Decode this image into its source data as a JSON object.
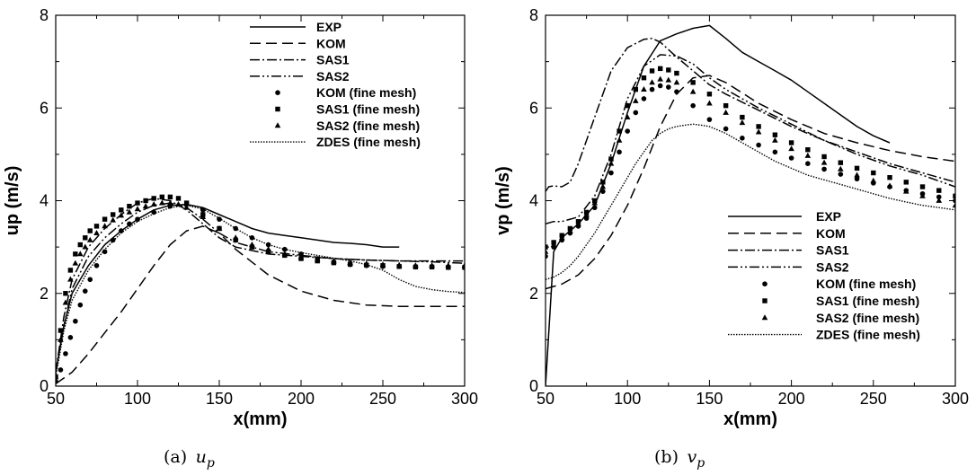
{
  "chart_data": [
    {
      "type": "line",
      "caption": "(a) u_p",
      "caption_prefix": "(a)",
      "caption_symbol": "u",
      "caption_sub": "p",
      "xlabel": "x(mm)",
      "ylabel": "up (m/s)",
      "xlim": [
        50,
        300
      ],
      "ylim": [
        0,
        8
      ],
      "xticks": [
        50,
        100,
        150,
        200,
        250,
        300
      ],
      "yticks": [
        0,
        2,
        4,
        6,
        8
      ],
      "legend_position": "top-right",
      "series": [
        {
          "name": "EXP",
          "style": "solid",
          "x": [
            50,
            55,
            60,
            70,
            80,
            90,
            100,
            110,
            120,
            130,
            140,
            150,
            160,
            170,
            180,
            190,
            200,
            210,
            220,
            230,
            240,
            250,
            260
          ],
          "y": [
            0.3,
            1.3,
            2.0,
            2.6,
            3.05,
            3.35,
            3.6,
            3.8,
            3.9,
            3.92,
            3.85,
            3.7,
            3.55,
            3.4,
            3.3,
            3.25,
            3.2,
            3.15,
            3.1,
            3.08,
            3.05,
            3.0,
            3.0
          ]
        },
        {
          "name": "KOM",
          "style": "dashed",
          "x": [
            50,
            60,
            70,
            80,
            90,
            100,
            110,
            120,
            130,
            140,
            150,
            160,
            180,
            200,
            220,
            240,
            260,
            280,
            300
          ],
          "y": [
            0.05,
            0.3,
            0.7,
            1.15,
            1.6,
            2.1,
            2.6,
            3.05,
            3.35,
            3.45,
            3.3,
            2.95,
            2.4,
            2.05,
            1.85,
            1.75,
            1.72,
            1.72,
            1.72
          ]
        },
        {
          "name": "SAS1",
          "style": "dashdot",
          "x": [
            50,
            55,
            60,
            70,
            80,
            90,
            100,
            110,
            120,
            130,
            140,
            150,
            160,
            180,
            200,
            220,
            240,
            260,
            280,
            300
          ],
          "y": [
            0.3,
            1.5,
            2.3,
            3.0,
            3.4,
            3.7,
            3.95,
            4.05,
            4.0,
            3.8,
            3.5,
            3.2,
            3.0,
            2.85,
            2.8,
            2.75,
            2.72,
            2.7,
            2.7,
            2.7
          ]
        },
        {
          "name": "SAS2",
          "style": "dashdotdot",
          "x": [
            50,
            55,
            60,
            70,
            80,
            90,
            100,
            110,
            120,
            130,
            140,
            150,
            160,
            180,
            200,
            220,
            240,
            260,
            280,
            300
          ],
          "y": [
            0.3,
            1.3,
            2.1,
            2.8,
            3.2,
            3.5,
            3.75,
            3.9,
            3.95,
            3.85,
            3.6,
            3.3,
            3.1,
            2.9,
            2.82,
            2.75,
            2.72,
            2.7,
            2.68,
            2.65
          ]
        },
        {
          "name": "KOM (fine mesh)",
          "style": "circle",
          "x": [
            50,
            53,
            56,
            59,
            62,
            65,
            68,
            71,
            75,
            80,
            85,
            90,
            95,
            100,
            110,
            120,
            130,
            140,
            150,
            160,
            170,
            180,
            190,
            200,
            210,
            220,
            230,
            240,
            250,
            260,
            270,
            280,
            290,
            300
          ],
          "y": [
            0.1,
            0.35,
            0.7,
            1.05,
            1.4,
            1.75,
            2.05,
            2.3,
            2.6,
            2.9,
            3.15,
            3.35,
            3.5,
            3.6,
            3.75,
            3.88,
            3.92,
            3.8,
            3.6,
            3.4,
            3.2,
            3.05,
            2.95,
            2.85,
            2.75,
            2.68,
            2.62,
            2.6,
            2.58,
            2.58,
            2.57,
            2.57,
            2.57,
            2.56
          ]
        },
        {
          "name": "SAS1 (fine mesh)",
          "style": "square",
          "x": [
            50,
            53,
            56,
            59,
            62,
            65,
            68,
            71,
            75,
            80,
            85,
            90,
            95,
            100,
            105,
            110,
            115,
            120,
            125,
            130,
            140,
            150,
            160,
            170,
            180,
            190,
            200,
            210,
            220,
            230,
            240,
            250,
            260,
            270,
            280,
            290,
            300
          ],
          "y": [
            0.2,
            1.2,
            2.0,
            2.5,
            2.85,
            3.05,
            3.2,
            3.35,
            3.45,
            3.6,
            3.7,
            3.8,
            3.88,
            3.95,
            4.0,
            4.05,
            4.08,
            4.08,
            4.05,
            3.95,
            3.7,
            3.4,
            3.15,
            3.0,
            2.9,
            2.82,
            2.75,
            2.7,
            2.66,
            2.63,
            2.61,
            2.6,
            2.58,
            2.57,
            2.57,
            2.56,
            2.56
          ]
        },
        {
          "name": "SAS2 (fine mesh)",
          "style": "triangle",
          "x": [
            50,
            53,
            56,
            59,
            62,
            65,
            68,
            71,
            75,
            80,
            85,
            90,
            95,
            100,
            105,
            110,
            115,
            120,
            125,
            130,
            140,
            150,
            160,
            170,
            180,
            190,
            200,
            210,
            220,
            230,
            240,
            250,
            260,
            270,
            280,
            290,
            300
          ],
          "y": [
            0.2,
            1.0,
            1.8,
            2.3,
            2.65,
            2.85,
            3.0,
            3.15,
            3.3,
            3.45,
            3.58,
            3.68,
            3.75,
            3.82,
            3.88,
            3.92,
            3.95,
            3.95,
            3.92,
            3.85,
            3.65,
            3.4,
            3.2,
            3.05,
            2.95,
            2.85,
            2.78,
            2.73,
            2.69,
            2.66,
            2.64,
            2.62,
            2.61,
            2.6,
            2.6,
            2.6,
            2.6
          ]
        },
        {
          "name": "ZDES (fine mesh)",
          "style": "dotted",
          "x": [
            50,
            55,
            60,
            70,
            80,
            90,
            100,
            110,
            120,
            130,
            140,
            150,
            160,
            170,
            180,
            190,
            200,
            210,
            220,
            230,
            240,
            250,
            260,
            270,
            280,
            290,
            300
          ],
          "y": [
            0.2,
            1.2,
            1.85,
            2.5,
            2.95,
            3.3,
            3.55,
            3.72,
            3.85,
            3.9,
            3.82,
            3.62,
            3.4,
            3.2,
            3.05,
            2.95,
            2.88,
            2.82,
            2.76,
            2.7,
            2.62,
            2.5,
            2.3,
            2.15,
            2.08,
            2.04,
            2.02
          ]
        }
      ]
    },
    {
      "type": "line",
      "caption": "(b) v_p",
      "caption_prefix": "(b)",
      "caption_symbol": "v",
      "caption_sub": "p",
      "xlabel": "x(mm)",
      "ylabel": "vp (m/s)",
      "xlim": [
        50,
        300
      ],
      "ylim": [
        0,
        8
      ],
      "xticks": [
        50,
        100,
        150,
        200,
        250,
        300
      ],
      "yticks": [
        0,
        2,
        4,
        6,
        8
      ],
      "legend_position": "bottom-right",
      "series": [
        {
          "name": "EXP",
          "style": "solid",
          "x": [
            50,
            55,
            60,
            70,
            80,
            90,
            100,
            110,
            120,
            130,
            140,
            150,
            160,
            170,
            180,
            190,
            200,
            210,
            220,
            230,
            240,
            250,
            260
          ],
          "y": [
            0.0,
            2.9,
            3.2,
            3.5,
            3.9,
            4.8,
            5.9,
            6.9,
            7.45,
            7.6,
            7.72,
            7.78,
            7.5,
            7.2,
            7.0,
            6.8,
            6.6,
            6.35,
            6.1,
            5.85,
            5.6,
            5.4,
            5.25
          ]
        },
        {
          "name": "KOM",
          "style": "dashed",
          "x": [
            50,
            55,
            60,
            70,
            80,
            90,
            100,
            110,
            120,
            130,
            140,
            150,
            160,
            180,
            200,
            220,
            240,
            260,
            280,
            300
          ],
          "y": [
            2.1,
            2.15,
            2.2,
            2.4,
            2.75,
            3.25,
            3.9,
            4.7,
            5.6,
            6.3,
            6.65,
            6.7,
            6.55,
            6.1,
            5.75,
            5.45,
            5.25,
            5.08,
            4.95,
            4.85
          ]
        },
        {
          "name": "SAS1",
          "style": "dashdot",
          "x": [
            50,
            52,
            55,
            60,
            65,
            70,
            80,
            90,
            100,
            110,
            115,
            120,
            130,
            140,
            150,
            160,
            180,
            200,
            220,
            240,
            260,
            280,
            300
          ],
          "y": [
            4.2,
            4.3,
            4.32,
            4.3,
            4.4,
            4.8,
            5.8,
            6.8,
            7.3,
            7.48,
            7.5,
            7.42,
            7.1,
            6.8,
            6.5,
            6.3,
            5.95,
            5.6,
            5.3,
            5.05,
            4.8,
            4.6,
            4.4
          ]
        },
        {
          "name": "SAS2",
          "style": "dashdotdot",
          "x": [
            50,
            55,
            60,
            70,
            80,
            90,
            100,
            110,
            120,
            130,
            140,
            150,
            160,
            180,
            200,
            220,
            240,
            260,
            280,
            300
          ],
          "y": [
            3.5,
            3.55,
            3.55,
            3.65,
            4.1,
            5.0,
            6.2,
            6.9,
            7.15,
            7.12,
            6.95,
            6.65,
            6.4,
            6.0,
            5.65,
            5.3,
            5.0,
            4.75,
            4.55,
            4.3
          ]
        },
        {
          "name": "KOM (fine mesh)",
          "style": "circle",
          "x": [
            50,
            55,
            60,
            65,
            70,
            75,
            80,
            85,
            90,
            95,
            100,
            105,
            110,
            115,
            120,
            125,
            130,
            140,
            150,
            160,
            170,
            180,
            190,
            200,
            210,
            220,
            230,
            240,
            250,
            260,
            270,
            280,
            290,
            300
          ],
          "y": [
            2.8,
            3.0,
            3.15,
            3.3,
            3.45,
            3.62,
            3.85,
            4.2,
            4.6,
            5.05,
            5.5,
            5.9,
            6.2,
            6.4,
            6.48,
            6.45,
            6.35,
            6.05,
            5.75,
            5.55,
            5.35,
            5.2,
            5.05,
            4.92,
            4.8,
            4.68,
            4.57,
            4.47,
            4.38,
            4.3,
            4.22,
            4.15,
            4.08,
            4.0
          ]
        },
        {
          "name": "SAS1 (fine mesh)",
          "style": "square",
          "x": [
            50,
            55,
            60,
            65,
            70,
            75,
            80,
            85,
            90,
            95,
            100,
            105,
            110,
            115,
            120,
            125,
            130,
            140,
            150,
            160,
            170,
            180,
            190,
            200,
            210,
            220,
            230,
            240,
            250,
            260,
            270,
            280,
            290,
            300
          ],
          "y": [
            3.0,
            3.1,
            3.25,
            3.4,
            3.55,
            3.75,
            4.0,
            4.4,
            4.9,
            5.5,
            6.05,
            6.4,
            6.65,
            6.8,
            6.85,
            6.82,
            6.75,
            6.55,
            6.3,
            6.05,
            5.8,
            5.6,
            5.42,
            5.25,
            5.1,
            4.95,
            4.82,
            4.7,
            4.6,
            4.5,
            4.4,
            4.3,
            4.22,
            4.1
          ]
        },
        {
          "name": "SAS2 (fine mesh)",
          "style": "triangle",
          "x": [
            50,
            55,
            60,
            65,
            70,
            75,
            80,
            85,
            90,
            95,
            100,
            105,
            110,
            115,
            120,
            125,
            130,
            140,
            150,
            160,
            170,
            180,
            190,
            200,
            210,
            220,
            230,
            240,
            250,
            260,
            270,
            280,
            290,
            300
          ],
          "y": [
            2.9,
            3.05,
            3.2,
            3.35,
            3.5,
            3.7,
            3.95,
            4.3,
            4.8,
            5.3,
            5.8,
            6.15,
            6.4,
            6.55,
            6.62,
            6.6,
            6.55,
            6.35,
            6.1,
            5.9,
            5.68,
            5.48,
            5.3,
            5.12,
            4.97,
            4.82,
            4.68,
            4.55,
            4.43,
            4.32,
            4.2,
            4.1,
            4.0,
            3.9
          ]
        },
        {
          "name": "ZDES (fine mesh)",
          "style": "dotted",
          "x": [
            50,
            55,
            60,
            65,
            70,
            75,
            80,
            85,
            90,
            95,
            100,
            105,
            110,
            115,
            120,
            125,
            130,
            135,
            140,
            145,
            150,
            160,
            170,
            180,
            190,
            200,
            210,
            220,
            230,
            240,
            250,
            260,
            270,
            280,
            290,
            300
          ],
          "y": [
            2.3,
            2.35,
            2.45,
            2.6,
            2.8,
            3.05,
            3.3,
            3.6,
            3.9,
            4.2,
            4.5,
            4.8,
            5.05,
            5.3,
            5.45,
            5.55,
            5.6,
            5.63,
            5.65,
            5.63,
            5.6,
            5.45,
            5.25,
            5.05,
            4.85,
            4.7,
            4.55,
            4.45,
            4.35,
            4.25,
            4.15,
            4.05,
            3.97,
            3.9,
            3.85,
            3.8
          ]
        }
      ]
    }
  ]
}
